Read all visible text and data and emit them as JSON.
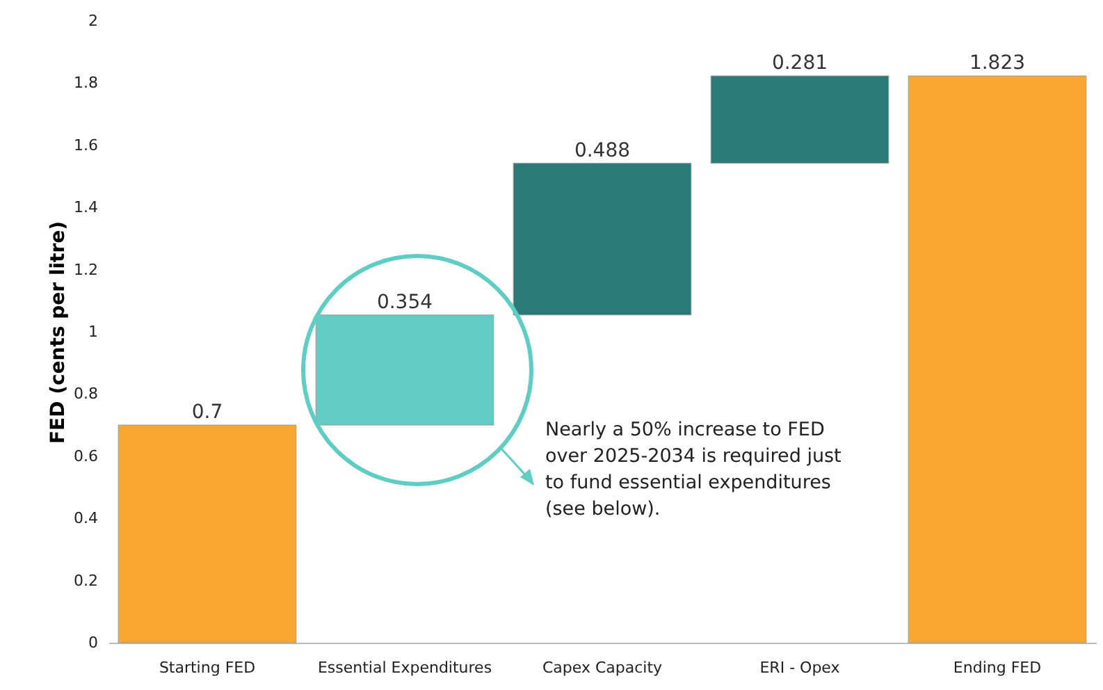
{
  "chart_data": {
    "type": "bar",
    "ylabel": "FED (cents per litre)",
    "categories": [
      "Starting FED",
      "Essential Expenditures",
      "Capex Capacity",
      "ERI - Opex",
      "Ending FED"
    ],
    "values": [
      0.7,
      0.354,
      0.488,
      0.281,
      1.823
    ],
    "base": [
      0,
      0.7,
      1.054,
      1.542,
      0
    ],
    "colors": [
      "#f9a82f",
      "#62cdc4",
      "#2a7a78",
      "#2a7a78",
      "#f9a82f"
    ],
    "ylim": [
      0,
      2
    ],
    "yticks": [
      0,
      0.2,
      0.4,
      0.6,
      0.8,
      1,
      1.2,
      1.4,
      1.6,
      1.8,
      2
    ],
    "grid": false,
    "data_labels": true,
    "annotations": [
      "Nearly a 50% increase to FED over 2025-2034 is required just to fund essential expenditures (see below)."
    ]
  }
}
